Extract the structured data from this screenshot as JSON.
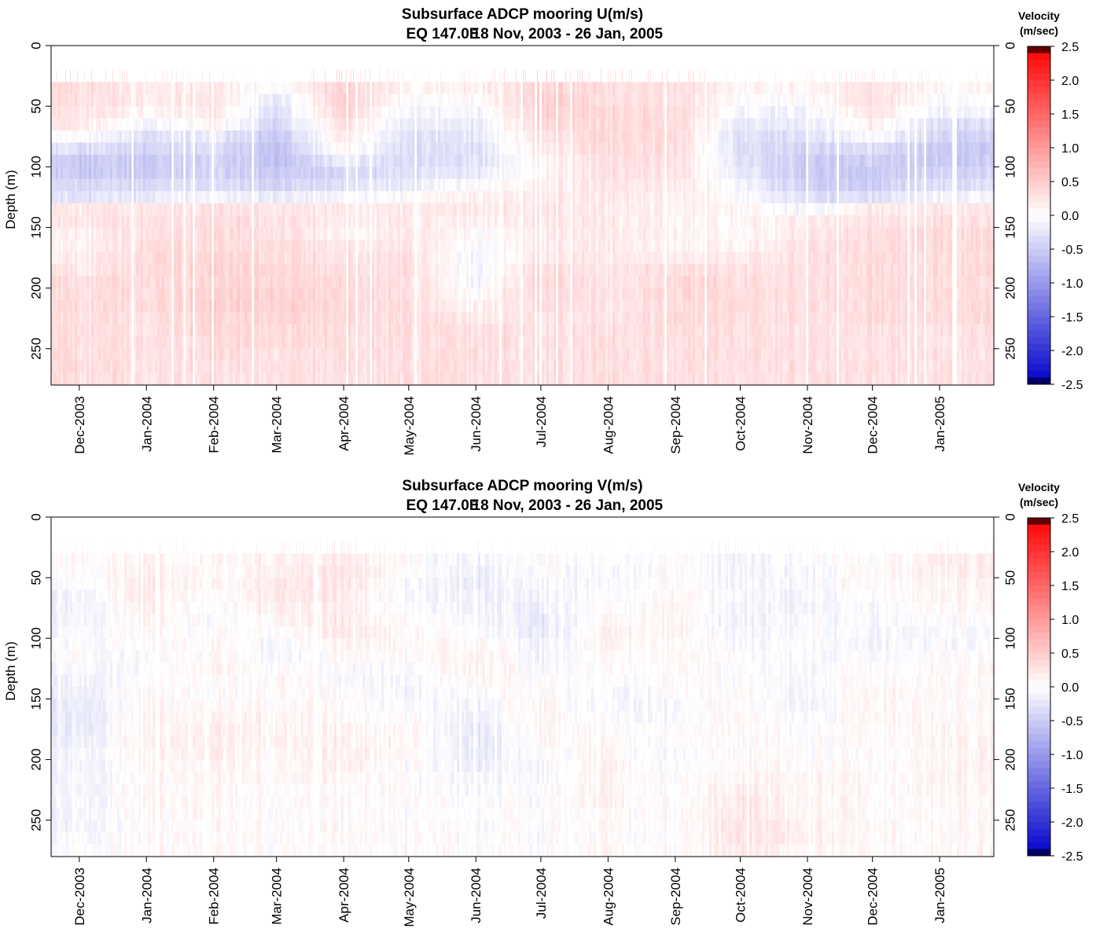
{
  "chart_data": [
    {
      "type": "heatmap",
      "title": "Subsurface ADCP mooring U(m/s)",
      "subtitle_location": "EQ 147.0E",
      "subtitle_dates": "18 Nov, 2003 - 26 Jan, 2005",
      "ylabel": "Depth (m)",
      "xlabel": "",
      "x_range": [
        "2003-11-18",
        "2005-01-26"
      ],
      "ylim": [
        0,
        280
      ],
      "y_reversed": true,
      "y_ticks": [
        0,
        50,
        100,
        150,
        200,
        250
      ],
      "x_tick_labels": [
        "Dec-2003",
        "Jan-2004",
        "Feb-2004",
        "Mar-2004",
        "Apr-2004",
        "May-2004",
        "Jun-2004",
        "Jul-2004",
        "Aug-2004",
        "Sep-2004",
        "Oct-2004",
        "Nov-2004",
        "Dec-2004",
        "Jan-2005"
      ],
      "x_tick_dates": [
        "2003-12-01",
        "2004-01-01",
        "2004-02-01",
        "2004-03-01",
        "2004-04-01",
        "2004-05-01",
        "2004-06-01",
        "2004-07-01",
        "2004-08-01",
        "2004-09-01",
        "2004-10-01",
        "2004-11-01",
        "2004-12-01",
        "2005-01-01"
      ],
      "colorbar": {
        "title_line1": "Velocity",
        "title_line2": "(m/sec)",
        "range": [
          -2.5,
          2.5
        ],
        "tick_values": [
          2.5,
          2.0,
          1.5,
          1.0,
          0.5,
          0.0,
          -0.5,
          -1.0,
          -1.5,
          -2.0,
          -2.5
        ],
        "tick_labels": [
          "2.5",
          "2.0",
          "1.5",
          "1.0",
          "0.5",
          "0.0",
          "-0.5",
          "-1.0",
          "-1.5",
          "-2.0",
          "-2.5"
        ],
        "colors": {
          "neg_max": "#0000cc",
          "zero": "#ffffff",
          "pos_max": "#ff0000",
          "neg_end": "#000066",
          "pos_end": "#660000"
        }
      },
      "depths": [
        35,
        45,
        55,
        65,
        75,
        85,
        95,
        105,
        115,
        125,
        135,
        145,
        155,
        165,
        175,
        185,
        195,
        205,
        215,
        225,
        235,
        245,
        255,
        265,
        275
      ],
      "surface_sparse_depth": 25,
      "approx_velocity_m_per_s": {
        "Dec-2003": [
          0.3,
          0.3,
          0.25,
          0.2,
          0.0,
          -0.3,
          -0.5,
          -0.5,
          -0.4,
          -0.3,
          0.2,
          0.2,
          0.1,
          0.1,
          0.15,
          0.2,
          0.3,
          0.3,
          0.3,
          0.3,
          0.3,
          0.3,
          0.3,
          0.3,
          0.3
        ],
        "Jan-2004": [
          0.2,
          0.2,
          0.1,
          -0.1,
          -0.3,
          -0.4,
          -0.5,
          -0.5,
          -0.35,
          -0.2,
          0.25,
          0.3,
          0.3,
          0.35,
          0.35,
          0.35,
          0.35,
          0.35,
          0.35,
          0.3,
          0.3,
          0.3,
          0.3,
          0.3,
          0.3
        ],
        "Feb-2004": [
          0.2,
          0.25,
          0.2,
          0.1,
          -0.2,
          -0.3,
          -0.4,
          -0.4,
          -0.3,
          -0.1,
          0.3,
          0.35,
          0.35,
          0.35,
          0.4,
          0.4,
          0.4,
          0.45,
          0.45,
          0.4,
          0.4,
          0.35,
          0.35,
          0.3,
          0.3
        ],
        "Mar-2004": [
          0.0,
          -0.2,
          -0.3,
          -0.4,
          -0.5,
          -0.6,
          -0.6,
          -0.5,
          -0.4,
          -0.2,
          0.25,
          0.3,
          0.3,
          0.35,
          0.35,
          0.4,
          0.4,
          0.45,
          0.45,
          0.4,
          0.35,
          0.35,
          0.3,
          0.3,
          0.3
        ],
        "Apr-2004": [
          0.4,
          0.45,
          0.4,
          0.3,
          0.2,
          0.1,
          -0.2,
          -0.4,
          -0.3,
          -0.1,
          0.2,
          0.15,
          0.1,
          0.2,
          0.25,
          0.3,
          0.35,
          0.35,
          0.35,
          0.35,
          0.3,
          0.3,
          0.3,
          0.3,
          0.3
        ],
        "May-2004": [
          0.1,
          0.0,
          -0.1,
          -0.2,
          -0.3,
          -0.35,
          -0.35,
          -0.3,
          -0.2,
          0.0,
          0.2,
          0.2,
          0.2,
          0.25,
          0.3,
          0.3,
          0.3,
          0.3,
          0.3,
          0.3,
          0.3,
          0.3,
          0.3,
          0.3,
          0.3
        ],
        "Jun-2004": [
          0.1,
          0.0,
          -0.1,
          -0.2,
          -0.25,
          -0.3,
          -0.3,
          -0.2,
          0.0,
          0.15,
          0.2,
          0.1,
          0.0,
          -0.05,
          -0.1,
          -0.1,
          -0.1,
          0.0,
          0.1,
          0.2,
          0.3,
          0.3,
          0.3,
          0.3,
          0.3
        ],
        "Jul-2004": [
          0.45,
          0.5,
          0.45,
          0.4,
          0.3,
          0.2,
          0.1,
          0.1,
          0.15,
          0.2,
          0.25,
          0.25,
          0.2,
          0.2,
          0.25,
          0.35,
          0.4,
          0.4,
          0.35,
          0.3,
          0.3,
          0.3,
          0.3,
          0.3,
          0.3
        ],
        "Aug-2004": [
          0.3,
          0.3,
          0.35,
          0.35,
          0.35,
          0.35,
          0.3,
          0.3,
          0.25,
          0.2,
          0.2,
          0.2,
          0.2,
          0.2,
          0.2,
          0.25,
          0.25,
          0.25,
          0.25,
          0.25,
          0.3,
          0.3,
          0.3,
          0.3,
          0.3
        ],
        "Sep-2004": [
          0.3,
          0.3,
          0.35,
          0.35,
          0.35,
          0.3,
          0.3,
          0.25,
          0.2,
          0.15,
          0.1,
          0.1,
          0.1,
          0.1,
          0.15,
          0.3,
          0.35,
          0.35,
          0.35,
          0.35,
          0.3,
          0.3,
          0.3,
          0.3,
          0.3
        ],
        "Oct-2004": [
          0.1,
          0.0,
          -0.1,
          -0.2,
          -0.3,
          -0.3,
          -0.25,
          -0.2,
          -0.1,
          0.0,
          0.1,
          0.1,
          0.05,
          0.1,
          0.2,
          0.3,
          0.35,
          0.35,
          0.35,
          0.3,
          0.3,
          0.3,
          0.3,
          0.3,
          0.3
        ],
        "Nov-2004": [
          0.1,
          0.0,
          -0.1,
          -0.2,
          -0.3,
          -0.4,
          -0.5,
          -0.5,
          -0.45,
          -0.3,
          -0.1,
          0.2,
          0.25,
          0.3,
          0.3,
          0.3,
          0.3,
          0.3,
          0.3,
          0.3,
          0.3,
          0.3,
          0.3,
          0.3,
          0.3
        ],
        "Dec-2004": [
          0.3,
          0.3,
          0.25,
          0.15,
          0.0,
          -0.3,
          -0.45,
          -0.5,
          -0.45,
          -0.3,
          0.2,
          0.3,
          0.35,
          0.35,
          0.35,
          0.35,
          0.35,
          0.35,
          0.35,
          0.35,
          0.3,
          0.3,
          0.3,
          0.3,
          0.3
        ],
        "Jan-2005": [
          0.1,
          0.0,
          -0.1,
          -0.3,
          -0.4,
          -0.5,
          -0.5,
          -0.4,
          -0.3,
          -0.1,
          0.25,
          0.3,
          0.35,
          0.35,
          0.35,
          0.35,
          0.35,
          0.35,
          0.35,
          0.35,
          0.3,
          0.3,
          0.3,
          0.3,
          0.3
        ]
      }
    },
    {
      "type": "heatmap",
      "title": "Subsurface ADCP mooring V(m/s)",
      "subtitle_location": "EQ 147.0E",
      "subtitle_dates": "18 Nov, 2003 - 26 Jan, 2005",
      "ylabel": "Depth (m)",
      "xlabel": "",
      "x_range": [
        "2003-11-18",
        "2005-01-26"
      ],
      "ylim": [
        0,
        280
      ],
      "y_reversed": true,
      "y_ticks": [
        0,
        50,
        100,
        150,
        200,
        250
      ],
      "x_tick_labels": [
        "Dec-2003",
        "Jan-2004",
        "Feb-2004",
        "Mar-2004",
        "Apr-2004",
        "May-2004",
        "Jun-2004",
        "Jul-2004",
        "Aug-2004",
        "Sep-2004",
        "Oct-2004",
        "Nov-2004",
        "Dec-2004",
        "Jan-2005"
      ],
      "x_tick_dates": [
        "2003-12-01",
        "2004-01-01",
        "2004-02-01",
        "2004-03-01",
        "2004-04-01",
        "2004-05-01",
        "2004-06-01",
        "2004-07-01",
        "2004-08-01",
        "2004-09-01",
        "2004-10-01",
        "2004-11-01",
        "2004-12-01",
        "2005-01-01"
      ],
      "colorbar": {
        "title_line1": "Velocity",
        "title_line2": "(m/sec)",
        "range": [
          -2.5,
          2.5
        ],
        "tick_values": [
          2.5,
          2.0,
          1.5,
          1.0,
          0.5,
          0.0,
          -0.5,
          -1.0,
          -1.5,
          -2.0,
          -2.5
        ],
        "tick_labels": [
          "2.5",
          "2.0",
          "1.5",
          "1.0",
          "0.5",
          "0.0",
          "-0.5",
          "-1.0",
          "-1.5",
          "-2.0",
          "-2.5"
        ],
        "colors": {
          "neg_max": "#0000cc",
          "zero": "#ffffff",
          "pos_max": "#ff0000",
          "neg_end": "#000066",
          "pos_end": "#660000"
        }
      },
      "depths": [
        35,
        45,
        55,
        65,
        75,
        85,
        95,
        105,
        115,
        125,
        135,
        145,
        155,
        165,
        175,
        185,
        195,
        205,
        215,
        225,
        235,
        245,
        255,
        265,
        275
      ],
      "surface_sparse_depth": 25,
      "approx_velocity_m_per_s": {
        "Dec-2003": [
          0.05,
          0.0,
          -0.05,
          -0.1,
          -0.1,
          -0.1,
          -0.05,
          0.0,
          0.0,
          -0.05,
          -0.1,
          -0.15,
          -0.2,
          -0.2,
          -0.2,
          -0.15,
          -0.1,
          -0.1,
          -0.1,
          -0.1,
          -0.1,
          -0.1,
          -0.1,
          -0.05,
          0.0
        ],
        "Jan-2004": [
          0.1,
          0.15,
          0.2,
          0.2,
          0.15,
          0.1,
          0.05,
          0.0,
          -0.05,
          -0.05,
          0.0,
          0.05,
          0.05,
          0.1,
          0.1,
          0.1,
          0.1,
          0.05,
          0.05,
          0.05,
          0.05,
          0.05,
          0.05,
          0.05,
          0.05
        ],
        "Feb-2004": [
          0.05,
          0.05,
          0.05,
          0.0,
          -0.05,
          -0.05,
          0.0,
          0.05,
          0.1,
          0.1,
          0.05,
          0.0,
          0.05,
          0.1,
          0.15,
          0.15,
          0.15,
          0.1,
          0.1,
          0.05,
          0.05,
          0.05,
          0.05,
          0.05,
          0.05
        ],
        "Mar-2004": [
          0.1,
          0.15,
          0.2,
          0.2,
          0.15,
          0.1,
          0.0,
          -0.1,
          -0.1,
          0.0,
          0.05,
          0.05,
          0.05,
          0.1,
          0.1,
          0.1,
          0.05,
          0.05,
          0.05,
          0.0,
          0.0,
          0.0,
          0.0,
          0.0,
          0.0
        ],
        "Apr-2004": [
          0.2,
          0.25,
          0.25,
          0.2,
          0.15,
          0.2,
          0.2,
          0.15,
          0.05,
          0.0,
          -0.05,
          0.0,
          0.05,
          0.05,
          0.1,
          0.15,
          0.15,
          0.15,
          0.1,
          0.05,
          0.05,
          0.05,
          0.05,
          0.05,
          0.05
        ],
        "May-2004": [
          0.0,
          0.0,
          -0.05,
          -0.1,
          -0.05,
          0.0,
          0.05,
          0.05,
          0.0,
          -0.05,
          -0.1,
          -0.1,
          -0.05,
          0.0,
          0.05,
          0.05,
          0.05,
          0.0,
          0.0,
          0.0,
          0.0,
          0.0,
          0.0,
          0.0,
          0.0
        ],
        "Jun-2004": [
          -0.1,
          -0.15,
          -0.2,
          -0.15,
          -0.1,
          -0.05,
          0.0,
          0.1,
          0.15,
          0.15,
          0.1,
          0.0,
          -0.1,
          -0.15,
          -0.2,
          -0.2,
          -0.2,
          -0.15,
          -0.1,
          -0.05,
          0.0,
          0.0,
          0.0,
          0.0,
          0.0
        ],
        "Jul-2004": [
          0.05,
          0.0,
          -0.05,
          -0.1,
          -0.15,
          -0.2,
          -0.2,
          -0.15,
          -0.1,
          -0.05,
          0.0,
          0.05,
          0.1,
          0.1,
          0.1,
          0.05,
          0.0,
          -0.05,
          -0.05,
          0.0,
          0.0,
          0.0,
          0.0,
          0.0,
          0.0
        ],
        "Aug-2004": [
          -0.05,
          -0.1,
          -0.1,
          -0.05,
          0.0,
          0.05,
          0.1,
          0.1,
          0.05,
          0.0,
          -0.05,
          -0.1,
          -0.1,
          -0.05,
          0.0,
          0.05,
          0.05,
          0.1,
          0.1,
          0.1,
          0.1,
          0.05,
          0.05,
          0.05,
          0.05
        ],
        "Sep-2004": [
          0.05,
          0.05,
          0.05,
          0.1,
          0.1,
          0.1,
          0.1,
          0.05,
          0.05,
          0.05,
          0.05,
          0.0,
          -0.05,
          -0.05,
          0.0,
          0.0,
          -0.05,
          -0.05,
          0.0,
          0.0,
          0.0,
          0.0,
          0.0,
          0.0,
          0.0
        ],
        "Oct-2004": [
          -0.15,
          -0.15,
          -0.1,
          -0.1,
          -0.1,
          -0.15,
          -0.1,
          -0.05,
          0.0,
          0.0,
          0.0,
          0.05,
          0.05,
          0.05,
          0.05,
          0.05,
          0.05,
          0.05,
          0.1,
          0.15,
          0.2,
          0.2,
          0.25,
          0.25,
          0.2
        ],
        "Nov-2004": [
          0.0,
          -0.05,
          -0.05,
          -0.1,
          -0.1,
          -0.05,
          0.0,
          0.0,
          -0.05,
          -0.05,
          -0.05,
          -0.1,
          -0.1,
          -0.05,
          0.0,
          0.0,
          0.0,
          0.05,
          0.1,
          0.1,
          0.1,
          0.1,
          0.15,
          0.15,
          0.1
        ],
        "Dec-2004": [
          0.0,
          0.05,
          0.05,
          0.0,
          -0.05,
          -0.05,
          -0.1,
          -0.1,
          -0.05,
          0.0,
          0.05,
          0.1,
          0.1,
          0.1,
          0.05,
          0.05,
          0.0,
          0.0,
          0.05,
          0.05,
          0.05,
          0.05,
          0.05,
          0.05,
          0.05
        ],
        "Jan-2005": [
          0.15,
          0.15,
          0.1,
          0.1,
          0.05,
          0.0,
          -0.05,
          -0.05,
          0.0,
          0.05,
          0.05,
          0.05,
          0.05,
          0.05,
          0.1,
          0.1,
          0.1,
          0.1,
          0.1,
          0.1,
          0.05,
          0.05,
          0.05,
          0.05,
          0.05
        ]
      }
    }
  ]
}
